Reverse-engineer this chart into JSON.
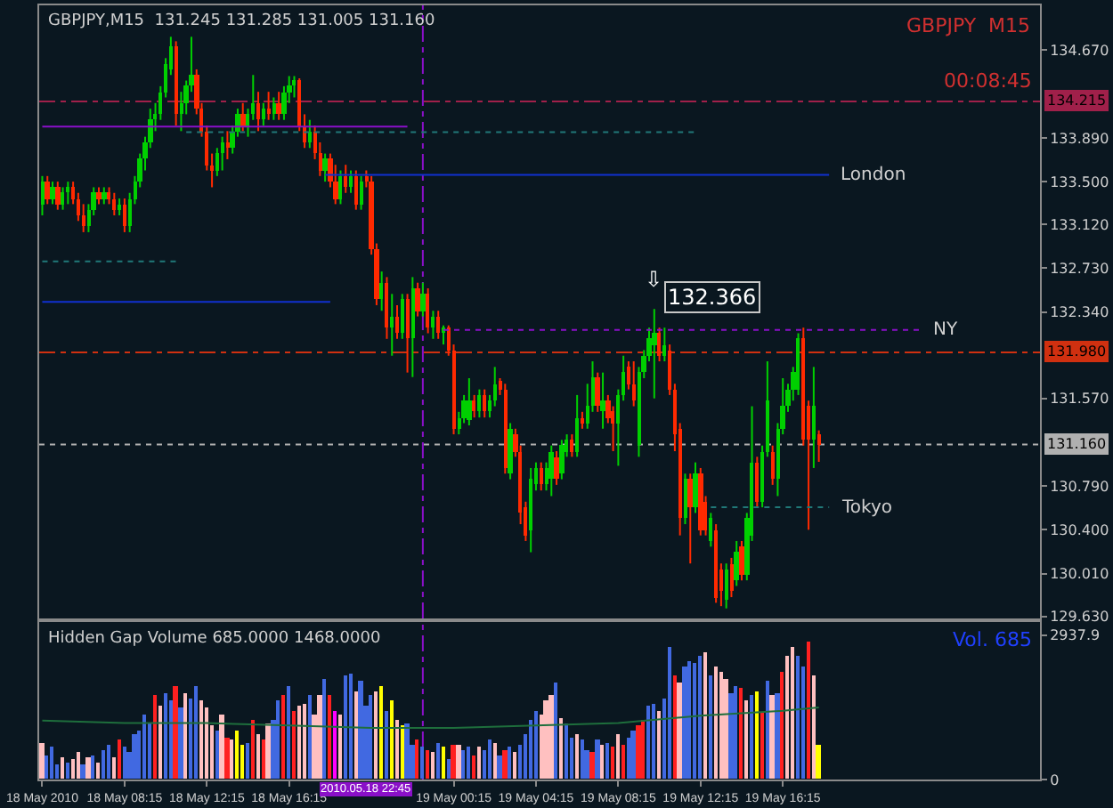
{
  "chart_data": [
    {
      "type": "candlestick",
      "annotations": [
        "GBPJPY,M15  131.245 131.285 131.005 131.160",
        "GBPJPY  M15",
        "00:08:45",
        {
          "text": "132.366",
          "x": "2010-05-19T10:00",
          "y": 132.366
        },
        {
          "text": "⇩",
          "x": "2010-05-19T10:00",
          "y": 132.366
        }
      ],
      "x": [
        "2010-05-18T04:15",
        "2010-05-18T04:30",
        "2010-05-18T04:45",
        "2010-05-18T05:00",
        "2010-05-18T05:15",
        "2010-05-18T05:30",
        "2010-05-18T05:45",
        "2010-05-18T06:00",
        "2010-05-18T06:15",
        "2010-05-18T06:30",
        "2010-05-18T06:45",
        "2010-05-18T07:00",
        "2010-05-18T07:15",
        "2010-05-18T07:30",
        "2010-05-18T07:45",
        "2010-05-18T08:00",
        "2010-05-18T08:15",
        "2010-05-18T08:30",
        "2010-05-18T08:45",
        "2010-05-18T09:00",
        "2010-05-18T09:15",
        "2010-05-18T09:30",
        "2010-05-18T09:45",
        "2010-05-18T10:00",
        "2010-05-18T10:15",
        "2010-05-18T10:30",
        "2010-05-18T10:45",
        "2010-05-18T11:00",
        "2010-05-18T11:15",
        "2010-05-18T11:30",
        "2010-05-18T11:45",
        "2010-05-18T12:00",
        "2010-05-18T12:15",
        "2010-05-18T12:30",
        "2010-05-18T12:45",
        "2010-05-18T13:00",
        "2010-05-18T13:15",
        "2010-05-18T13:30",
        "2010-05-18T13:45",
        "2010-05-18T14:00",
        "2010-05-18T14:15",
        "2010-05-18T14:30",
        "2010-05-18T14:45",
        "2010-05-18T15:00",
        "2010-05-18T15:15",
        "2010-05-18T15:30",
        "2010-05-18T15:45",
        "2010-05-18T16:00",
        "2010-05-18T16:15",
        "2010-05-18T16:30",
        "2010-05-18T16:45",
        "2010-05-18T17:00",
        "2010-05-18T17:15",
        "2010-05-18T17:30",
        "2010-05-18T17:45",
        "2010-05-18T18:00",
        "2010-05-18T18:15",
        "2010-05-18T18:30",
        "2010-05-18T18:45",
        "2010-05-18T19:00",
        "2010-05-18T19:15",
        "2010-05-18T19:30",
        "2010-05-18T19:45",
        "2010-05-18T20:00",
        "2010-05-18T20:15",
        "2010-05-18T20:30",
        "2010-05-18T20:45",
        "2010-05-18T21:00",
        "2010-05-18T21:15",
        "2010-05-18T21:30",
        "2010-05-18T21:45",
        "2010-05-18T22:00",
        "2010-05-18T22:15",
        "2010-05-18T22:30",
        "2010-05-18T22:45",
        "2010-05-18T23:00",
        "2010-05-18T23:15",
        "2010-05-18T23:30",
        "2010-05-18T23:45",
        "2010-05-19T00:00",
        "2010-05-19T00:15",
        "2010-05-19T00:30",
        "2010-05-19T00:45",
        "2010-05-19T01:00",
        "2010-05-19T01:15",
        "2010-05-19T01:30",
        "2010-05-19T01:45",
        "2010-05-19T02:00",
        "2010-05-19T02:15",
        "2010-05-19T02:30",
        "2010-05-19T02:45",
        "2010-05-19T03:00",
        "2010-05-19T03:15",
        "2010-05-19T03:30",
        "2010-05-19T03:45",
        "2010-05-19T04:00",
        "2010-05-19T04:15",
        "2010-05-19T04:30",
        "2010-05-19T04:45",
        "2010-05-19T05:00",
        "2010-05-19T05:15",
        "2010-05-19T05:30",
        "2010-05-19T05:45",
        "2010-05-19T06:00",
        "2010-05-19T06:15",
        "2010-05-19T06:30",
        "2010-05-19T06:45",
        "2010-05-19T07:00",
        "2010-05-19T07:15",
        "2010-05-19T07:30",
        "2010-05-19T07:45",
        "2010-05-19T08:00",
        "2010-05-19T08:15",
        "2010-05-19T08:30",
        "2010-05-19T08:45",
        "2010-05-19T09:00",
        "2010-05-19T09:15",
        "2010-05-19T09:30",
        "2010-05-19T09:45",
        "2010-05-19T10:00",
        "2010-05-19T10:15",
        "2010-05-19T10:30",
        "2010-05-19T10:45",
        "2010-05-19T11:00",
        "2010-05-19T11:15",
        "2010-05-19T11:30",
        "2010-05-19T11:45",
        "2010-05-19T12:00",
        "2010-05-19T12:15",
        "2010-05-19T12:30",
        "2010-05-19T12:45",
        "2010-05-19T13:00",
        "2010-05-19T13:15",
        "2010-05-19T13:30",
        "2010-05-19T13:45",
        "2010-05-19T14:00",
        "2010-05-19T14:15",
        "2010-05-19T14:30",
        "2010-05-19T14:45",
        "2010-05-19T15:00",
        "2010-05-19T15:15",
        "2010-05-19T15:30",
        "2010-05-19T15:45",
        "2010-05-19T16:00",
        "2010-05-19T16:15",
        "2010-05-19T16:30",
        "2010-05-19T16:45",
        "2010-05-19T17:00",
        "2010-05-19T17:15",
        "2010-05-19T17:30",
        "2010-05-19T17:45",
        "2010-05-19T18:00"
      ],
      "ohlc": [
        [
          133.3,
          133.55,
          133.2,
          133.5
        ],
        [
          133.5,
          133.55,
          133.3,
          133.35
        ],
        [
          133.35,
          133.5,
          133.3,
          133.45
        ],
        [
          133.45,
          133.5,
          133.25,
          133.3
        ],
        [
          133.3,
          133.45,
          133.25,
          133.4
        ],
        [
          133.4,
          133.5,
          133.3,
          133.45
        ],
        [
          133.45,
          133.5,
          133.3,
          133.35
        ],
        [
          133.35,
          133.4,
          133.15,
          133.2
        ],
        [
          133.2,
          133.3,
          133.05,
          133.1
        ],
        [
          133.1,
          133.3,
          133.05,
          133.25
        ],
        [
          133.25,
          133.45,
          133.2,
          133.4
        ],
        [
          133.4,
          133.45,
          133.3,
          133.35
        ],
        [
          133.35,
          133.45,
          133.3,
          133.4
        ],
        [
          133.4,
          133.45,
          133.3,
          133.35
        ],
        [
          133.35,
          133.4,
          133.2,
          133.25
        ],
        [
          133.25,
          133.35,
          133.2,
          133.3
        ],
        [
          133.3,
          133.35,
          133.05,
          133.1
        ],
        [
          133.1,
          133.4,
          133.05,
          133.35
        ],
        [
          133.35,
          133.55,
          133.3,
          133.5
        ],
        [
          133.5,
          133.75,
          133.45,
          133.7
        ],
        [
          133.7,
          133.9,
          133.6,
          133.85
        ],
        [
          133.85,
          134.15,
          133.8,
          134.05
        ],
        [
          134.05,
          134.2,
          133.95,
          134.1
        ],
        [
          134.1,
          134.35,
          134.05,
          134.3
        ],
        [
          134.3,
          134.6,
          134.25,
          134.55
        ],
        [
          134.5,
          134.79,
          134.45,
          134.7
        ],
        [
          134.7,
          134.75,
          134.0,
          134.1
        ],
        [
          134.1,
          134.3,
          133.95,
          134.2
        ],
        [
          134.2,
          134.4,
          134.1,
          134.35
        ],
        [
          134.35,
          134.79,
          134.3,
          134.45
        ],
        [
          134.45,
          134.5,
          134.1,
          134.15
        ],
        [
          134.15,
          134.2,
          133.9,
          133.95
        ],
        [
          133.95,
          134.0,
          133.6,
          133.65
        ],
        [
          133.65,
          133.75,
          133.45,
          133.6
        ],
        [
          133.6,
          133.8,
          133.55,
          133.75
        ],
        [
          133.75,
          133.9,
          133.6,
          133.85
        ],
        [
          133.85,
          133.95,
          133.7,
          133.8
        ],
        [
          133.8,
          134.0,
          133.75,
          133.95
        ],
        [
          133.95,
          134.15,
          133.9,
          134.1
        ],
        [
          134.1,
          134.2,
          133.95,
          134.0
        ],
        [
          134.0,
          134.15,
          133.9,
          134.1
        ],
        [
          134.1,
          134.45,
          134.05,
          134.2
        ],
        [
          134.2,
          134.3,
          133.95,
          134.05
        ],
        [
          134.05,
          134.2,
          134.0,
          134.15
        ],
        [
          134.15,
          134.3,
          134.05,
          134.1
        ],
        [
          134.1,
          134.25,
          134.05,
          134.2
        ],
        [
          134.2,
          134.3,
          134.05,
          134.1
        ],
        [
          134.1,
          134.35,
          134.05,
          134.3
        ],
        [
          134.3,
          134.44,
          134.2,
          134.35
        ],
        [
          134.35,
          134.44,
          134.25,
          134.4
        ],
        [
          134.4,
          134.42,
          133.95,
          134.0
        ],
        [
          134.0,
          134.1,
          133.8,
          133.85
        ],
        [
          133.85,
          134.05,
          133.8,
          133.95
        ],
        [
          133.95,
          134.0,
          133.7,
          133.75
        ],
        [
          133.75,
          133.85,
          133.55,
          133.6
        ],
        [
          133.6,
          133.75,
          133.5,
          133.7
        ],
        [
          133.7,
          133.75,
          133.45,
          133.5
        ],
        [
          133.5,
          133.65,
          133.3,
          133.35
        ],
        [
          133.35,
          133.6,
          133.3,
          133.55
        ],
        [
          133.55,
          133.65,
          133.4,
          133.45
        ],
        [
          133.45,
          133.6,
          133.4,
          133.55
        ],
        [
          133.55,
          133.6,
          133.25,
          133.3
        ],
        [
          133.3,
          133.55,
          133.25,
          133.5
        ],
        [
          133.55,
          133.6,
          133.45,
          133.5
        ],
        [
          133.5,
          133.55,
          132.85,
          132.9
        ],
        [
          132.9,
          132.95,
          132.4,
          132.45
        ],
        [
          132.45,
          132.7,
          132.35,
          132.6
        ],
        [
          132.6,
          132.65,
          132.1,
          132.2
        ],
        [
          132.2,
          132.5,
          131.95,
          132.3
        ],
        [
          132.3,
          132.4,
          132.1,
          132.15
        ],
        [
          132.15,
          132.5,
          132.1,
          132.45
        ],
        [
          132.45,
          132.5,
          131.8,
          132.1
        ],
        [
          132.1,
          132.65,
          131.76,
          132.55
        ],
        [
          132.55,
          132.6,
          132.3,
          132.35
        ],
        [
          132.35,
          132.6,
          132.3,
          132.5
        ],
        [
          132.5,
          132.55,
          132.15,
          132.2
        ],
        [
          132.2,
          132.35,
          132.1,
          132.3
        ],
        [
          132.3,
          132.35,
          132.1,
          132.15
        ],
        [
          132.15,
          132.22,
          132.05,
          132.2
        ],
        [
          132.2,
          132.22,
          131.95,
          132.0
        ],
        [
          132.0,
          132.05,
          131.25,
          131.3
        ],
        [
          131.3,
          131.45,
          131.25,
          131.4
        ],
        [
          131.4,
          131.6,
          131.35,
          131.55
        ],
        [
          131.38,
          131.75,
          131.33,
          131.55
        ],
        [
          131.55,
          131.6,
          131.4,
          131.45
        ],
        [
          131.45,
          131.65,
          131.4,
          131.6
        ],
        [
          131.6,
          131.65,
          131.4,
          131.45
        ],
        [
          131.45,
          131.6,
          131.4,
          131.55
        ],
        [
          131.55,
          131.85,
          131.5,
          131.7
        ],
        [
          131.72,
          131.75,
          131.6,
          131.65
        ],
        [
          131.65,
          131.7,
          130.9,
          130.95
        ],
        [
          130.9,
          131.35,
          130.85,
          131.3
        ],
        [
          131.25,
          131.3,
          131.05,
          131.1
        ],
        [
          131.1,
          131.15,
          130.45,
          130.55
        ],
        [
          130.6,
          130.65,
          130.3,
          130.35
        ],
        [
          130.4,
          130.95,
          130.2,
          130.85
        ],
        [
          130.8,
          131.0,
          130.75,
          130.95
        ],
        [
          130.95,
          131.0,
          130.75,
          130.8
        ],
        [
          130.8,
          131.0,
          130.75,
          130.95
        ],
        [
          130.85,
          131.15,
          130.7,
          131.1
        ],
        [
          131.05,
          131.1,
          130.8,
          130.85
        ],
        [
          130.9,
          131.2,
          130.85,
          131.15
        ],
        [
          131.1,
          131.25,
          131.05,
          131.2
        ],
        [
          131.2,
          131.25,
          131.05,
          131.1
        ],
        [
          131.1,
          131.6,
          131.05,
          131.4
        ],
        [
          131.4,
          131.45,
          131.3,
          131.35
        ],
        [
          131.35,
          131.7,
          131.3,
          131.5
        ],
        [
          131.5,
          131.9,
          131.45,
          131.75
        ],
        [
          131.75,
          131.8,
          131.45,
          131.5
        ],
        [
          131.45,
          131.8,
          131.3,
          131.55
        ],
        [
          131.55,
          131.6,
          131.35,
          131.4
        ],
        [
          131.45,
          131.5,
          131.1,
          131.35
        ],
        [
          131.35,
          131.65,
          130.97,
          131.6
        ],
        [
          131.6,
          131.95,
          131.55,
          131.8
        ],
        [
          131.85,
          131.9,
          131.65,
          131.7
        ],
        [
          131.7,
          131.9,
          131.5,
          131.55
        ],
        [
          131.15,
          131.85,
          131.05,
          131.8
        ],
        [
          131.8,
          132.0,
          131.75,
          131.95
        ],
        [
          131.95,
          132.2,
          131.9,
          132.1
        ],
        [
          132.05,
          132.366,
          131.57,
          132.15
        ],
        [
          132.15,
          132.2,
          131.9,
          131.95
        ],
        [
          131.95,
          132.2,
          131.9,
          132.05
        ],
        [
          132.0,
          132.05,
          131.6,
          131.65
        ],
        [
          131.65,
          131.7,
          131.1,
          131.25
        ],
        [
          131.3,
          131.35,
          130.35,
          130.5
        ],
        [
          130.5,
          130.9,
          130.45,
          130.85
        ],
        [
          130.85,
          130.9,
          130.1,
          130.6
        ],
        [
          130.6,
          131.0,
          130.55,
          130.9
        ],
        [
          130.9,
          130.95,
          130.35,
          130.4
        ],
        [
          130.65,
          130.7,
          130.35,
          130.4
        ],
        [
          130.3,
          130.55,
          130.25,
          130.5
        ],
        [
          130.4,
          130.45,
          129.75,
          129.8
        ],
        [
          130.05,
          130.1,
          129.72,
          129.85
        ],
        [
          129.78,
          130.1,
          129.7,
          130.05
        ],
        [
          130.1,
          130.15,
          129.8,
          129.85
        ],
        [
          129.95,
          130.3,
          129.9,
          130.2
        ],
        [
          130.25,
          130.3,
          129.95,
          130.0
        ],
        [
          130.0,
          130.55,
          129.95,
          130.5
        ],
        [
          130.35,
          131.5,
          130.3,
          131.0
        ],
        [
          131.0,
          131.05,
          130.6,
          130.65
        ],
        [
          130.65,
          131.15,
          130.6,
          131.1
        ],
        [
          131.1,
          131.9,
          131.05,
          131.55
        ],
        [
          131.1,
          131.15,
          130.8,
          130.85
        ],
        [
          130.85,
          131.35,
          130.7,
          131.3
        ],
        [
          131.3,
          131.75,
          131.25,
          131.5
        ],
        [
          131.5,
          131.7,
          131.45,
          131.65
        ],
        [
          131.65,
          131.85,
          131.55,
          131.8
        ],
        [
          131.65,
          132.15,
          131.6,
          132.1
        ],
        [
          132.1,
          132.2,
          131.15,
          131.2
        ],
        [
          131.5,
          131.55,
          130.4,
          131.2
        ],
        [
          131.2,
          131.85,
          130.95,
          131.5
        ],
        [
          131.245,
          131.285,
          131.005,
          131.16
        ]
      ],
      "series": [
        {
          "type": "line",
          "color": "#8a10c8",
          "line_style": "solid",
          "x": [
            "2010-05-18T04:15",
            "2010-05-18T22:00"
          ],
          "values": [
            133.99,
            133.99
          ]
        },
        {
          "type": "line",
          "color": "#207878",
          "line_style": "dotted",
          "x": [
            "2010-05-18T11:15",
            "2010-05-19T12:00"
          ],
          "values": [
            133.94,
            133.94
          ]
        },
        {
          "type": "line",
          "name": "London",
          "color": "#1030d0",
          "line_style": "solid",
          "x": [
            "2010-05-18T18:00",
            "2010-05-19T18:30"
          ],
          "values": [
            133.56,
            133.56
          ]
        },
        {
          "type": "line",
          "color": "#207878",
          "line_style": "dotted",
          "x": [
            "2010-05-18T04:15",
            "2010-05-18T11:00"
          ],
          "values": [
            132.79,
            132.79
          ]
        },
        {
          "type": "line",
          "color": "#1030d0",
          "line_style": "solid",
          "x": [
            "2010-05-18T04:15",
            "2010-05-18T18:15"
          ],
          "values": [
            132.43,
            132.43
          ]
        },
        {
          "type": "line",
          "name": "NY",
          "color": "#8a10c8",
          "line_style": "dotted",
          "x": [
            "2010-05-18T23:45",
            "2010-05-19T23:00"
          ],
          "values": [
            132.18,
            132.18
          ]
        },
        {
          "type": "line",
          "name": "Tokyo",
          "color": "#207878",
          "line_style": "dotted",
          "x": [
            "2010-05-19T12:45",
            "2010-05-19T18:30"
          ],
          "values": [
            130.6,
            130.6
          ]
        }
      ],
      "ref_lines": [
        {
          "axis": "y",
          "value": 134.215,
          "label": "134.215",
          "color": "#a0204a",
          "line_style": "dashed"
        },
        {
          "axis": "y",
          "value": 131.98,
          "label": "131.980",
          "color": "#d03010",
          "line_style": "dashed"
        },
        {
          "axis": "y",
          "value": 131.16,
          "label": "131.160",
          "color": "#b0b0b0",
          "line_style": "dotted"
        },
        {
          "axis": "x",
          "value": "2010-05-18T22:45",
          "color": "#8a10c8",
          "line_style": "dashed"
        }
      ],
      "xlim": [
        "2010-05-18T04:06",
        "2010-05-20T04:45"
      ],
      "ylim": [
        129.61,
        135.07
      ],
      "yticks": [
        {
          "value": 134.67,
          "label": "134.670"
        },
        {
          "value": 133.89,
          "label": "133.890"
        },
        {
          "value": 133.5,
          "label": "133.500"
        },
        {
          "value": 133.12,
          "label": "133.120"
        },
        {
          "value": 132.73,
          "label": "132.730"
        },
        {
          "value": 132.34,
          "label": "132.340"
        },
        {
          "value": 131.57,
          "label": "131.570"
        },
        {
          "value": 130.79,
          "label": "130.790"
        },
        {
          "value": 130.4,
          "label": "130.400"
        },
        {
          "value": 130.01,
          "label": "130.010"
        },
        {
          "value": 129.63,
          "label": "129.630"
        }
      ],
      "tick_labels": "y"
    },
    {
      "type": "bar",
      "title": "Hidden Gap Volume 685.0000 1468.0000",
      "annotations": [
        "Vol. 685"
      ],
      "series": [
        {
          "type": "bar",
          "x": [
            "2010-05-18T04:15",
            "2010-05-18T04:30",
            "2010-05-18T04:45",
            "2010-05-18T05:00",
            "2010-05-18T05:15",
            "2010-05-18T05:30",
            "2010-05-18T05:45",
            "2010-05-18T06:00",
            "2010-05-18T06:15",
            "2010-05-18T06:30",
            "2010-05-18T06:45",
            "2010-05-18T07:00",
            "2010-05-18T07:15",
            "2010-05-18T07:30",
            "2010-05-18T07:45",
            "2010-05-18T08:00",
            "2010-05-18T08:15",
            "2010-05-18T08:30",
            "2010-05-18T08:45",
            "2010-05-18T09:00",
            "2010-05-18T09:15",
            "2010-05-18T09:30",
            "2010-05-18T09:45",
            "2010-05-18T10:00",
            "2010-05-18T10:15",
            "2010-05-18T10:30",
            "2010-05-18T10:45",
            "2010-05-18T11:00",
            "2010-05-18T11:15",
            "2010-05-18T11:30",
            "2010-05-18T11:45",
            "2010-05-18T12:00",
            "2010-05-18T12:15",
            "2010-05-18T12:30",
            "2010-05-18T12:45",
            "2010-05-18T13:00",
            "2010-05-18T13:15",
            "2010-05-18T13:30",
            "2010-05-18T13:45",
            "2010-05-18T14:00",
            "2010-05-18T14:15",
            "2010-05-18T14:30",
            "2010-05-18T14:45",
            "2010-05-18T15:00",
            "2010-05-18T15:15",
            "2010-05-18T15:30",
            "2010-05-18T15:45",
            "2010-05-18T16:00",
            "2010-05-18T16:15",
            "2010-05-18T16:30",
            "2010-05-18T16:45",
            "2010-05-18T17:00",
            "2010-05-18T17:15",
            "2010-05-18T17:30",
            "2010-05-18T17:45",
            "2010-05-18T18:00",
            "2010-05-18T18:15",
            "2010-05-18T18:30",
            "2010-05-18T18:45",
            "2010-05-18T19:00",
            "2010-05-18T19:15",
            "2010-05-18T19:30",
            "2010-05-18T19:45",
            "2010-05-18T20:00",
            "2010-05-18T20:15",
            "2010-05-18T20:30",
            "2010-05-18T20:45",
            "2010-05-18T21:00",
            "2010-05-18T21:15",
            "2010-05-18T21:30",
            "2010-05-18T21:45",
            "2010-05-18T22:00",
            "2010-05-18T22:15",
            "2010-05-18T22:30",
            "2010-05-18T22:45",
            "2010-05-18T23:00",
            "2010-05-18T23:15",
            "2010-05-18T23:30",
            "2010-05-18T23:45",
            "2010-05-19T00:00",
            "2010-05-19T00:15",
            "2010-05-19T00:30",
            "2010-05-19T00:45",
            "2010-05-19T01:00",
            "2010-05-19T01:15",
            "2010-05-19T01:30",
            "2010-05-19T01:45",
            "2010-05-19T02:00",
            "2010-05-19T02:15",
            "2010-05-19T02:30",
            "2010-05-19T02:45",
            "2010-05-19T03:00",
            "2010-05-19T03:15",
            "2010-05-19T03:30",
            "2010-05-19T03:45",
            "2010-05-19T04:00",
            "2010-05-19T04:15",
            "2010-05-19T04:30",
            "2010-05-19T04:45",
            "2010-05-19T05:00",
            "2010-05-19T05:15",
            "2010-05-19T05:30",
            "2010-05-19T05:45",
            "2010-05-19T06:00",
            "2010-05-19T06:15",
            "2010-05-19T06:30",
            "2010-05-19T06:45",
            "2010-05-19T07:00",
            "2010-05-19T07:15",
            "2010-05-19T07:30",
            "2010-05-19T07:45",
            "2010-05-19T08:00",
            "2010-05-19T08:15",
            "2010-05-19T08:30",
            "2010-05-19T08:45",
            "2010-05-19T09:00",
            "2010-05-19T09:15",
            "2010-05-19T09:30",
            "2010-05-19T09:45",
            "2010-05-19T10:00",
            "2010-05-19T10:15",
            "2010-05-19T10:30",
            "2010-05-19T10:45",
            "2010-05-19T11:00",
            "2010-05-19T11:15",
            "2010-05-19T11:30",
            "2010-05-19T11:45",
            "2010-05-19T12:00",
            "2010-05-19T12:15",
            "2010-05-19T12:30",
            "2010-05-19T12:45",
            "2010-05-19T13:00",
            "2010-05-19T13:15",
            "2010-05-19T13:30",
            "2010-05-19T13:45",
            "2010-05-19T14:00",
            "2010-05-19T14:15",
            "2010-05-19T14:30",
            "2010-05-19T14:45",
            "2010-05-19T15:00",
            "2010-05-19T15:15",
            "2010-05-19T15:30",
            "2010-05-19T15:45",
            "2010-05-19T16:00",
            "2010-05-19T16:15",
            "2010-05-19T16:30",
            "2010-05-19T16:45",
            "2010-05-19T17:00",
            "2010-05-19T17:15",
            "2010-05-19T17:30",
            "2010-05-19T17:45",
            "2010-05-19T18:00"
          ],
          "values": [
            750,
            500,
            650,
            300,
            450,
            350,
            400,
            550,
            300,
            450,
            500,
            350,
            600,
            700,
            450,
            800,
            650,
            550,
            900,
            1000,
            1300,
            1150,
            1700,
            1500,
            1750,
            1600,
            1900,
            1450,
            1750,
            1650,
            1900,
            1600,
            1450,
            1100,
            1000,
            1300,
            850,
            800,
            1000,
            700,
            750,
            1200,
            900,
            800,
            1150,
            1200,
            1600,
            1700,
            1900,
            1400,
            1500,
            1550,
            1700,
            1300,
            1700,
            2050,
            1700,
            1400,
            1300,
            2100,
            2150,
            1800,
            2000,
            1500,
            1700,
            1800,
            1900,
            1400,
            1600,
            1200,
            1100,
            1150,
            700,
            800,
            650,
            600,
            550,
            750,
            650,
            400,
            700,
            700,
            600,
            650,
            500,
            650,
            600,
            800,
            750,
            500,
            600,
            650,
            550,
            700,
            900,
            1200,
            1400,
            1300,
            1600,
            1700,
            1950,
            1250,
            1150,
            850,
            900,
            800,
            600,
            550,
            800,
            700,
            750,
            650,
            900,
            700,
            850,
            1000,
            1100,
            1200,
            1500,
            1550,
            1400,
            1650,
            2700,
            2100,
            1950,
            2300,
            2400,
            2350,
            2500,
            2600,
            2100,
            2300,
            2200,
            2050,
            1750,
            1900,
            1850,
            1600,
            1700,
            1800,
            1350,
            2000,
            1700,
            1750,
            2200,
            2500,
            2700,
            2500,
            2300,
            2800,
            2100,
            685
          ],
          "colors": [
            "#ffc0c0",
            "#4169e1",
            "#4169e1",
            "#4169e1",
            "#ffc0c0",
            "#4169e1",
            "#ffc0c0",
            "#ffc0c0",
            "#4169e1",
            "#ffc0c0",
            "#4169e1",
            "#ffc0c0",
            "#4169e1",
            "#4169e1",
            "#ffc0c0",
            "#ff2020",
            "#4169e1",
            "#4169e1",
            "#4169e1",
            "#4169e1",
            "#4169e1",
            "#4169e1",
            "#ff2020",
            "#ffc0c0",
            "#4169e1",
            "#4169e1",
            "#ff2020",
            "#4169e1",
            "#ffc0c0",
            "#4169e1",
            "#4169e1",
            "#ffc0c0",
            "#ffc0c0",
            "#ffc0c0",
            "#4169e1",
            "#ffc0c0",
            "#ff2020",
            "#ffc0c0",
            "#ffff00",
            "#ffff00",
            "#4169e1",
            "#ff2020",
            "#ffc0c0",
            "#ff2020",
            "#ffc0c0",
            "#4169e1",
            "#4169e1",
            "#ff2020",
            "#4169e1",
            "#ff2020",
            "#ffc0c0",
            "#ffc0c0",
            "#4169e1",
            "#ffc0c0",
            "#ffc0c0",
            "#4169e1",
            "#ff2020",
            "#ff00ff",
            "#ffc0c0",
            "#4169e1",
            "#4169e1",
            "#ffc0c0",
            "#4169e1",
            "#4169e1",
            "#4169e1",
            "#ffc0c0",
            "#ffff00",
            "#4169e1",
            "#ffff00",
            "#ffc0c0",
            "#ffff00",
            "#4169e1",
            "#4169e1",
            "#ff2020",
            "#4169e1",
            "#ff2020",
            "#ffc0c0",
            "#4169e1",
            "#ffff00",
            "#4169e1",
            "#ff2020",
            "#ffc0c0",
            "#4169e1",
            "#4169e1",
            "#ff2020",
            "#ffc0c0",
            "#4169e1",
            "#4169e1",
            "#ffc0c0",
            "#4169e1",
            "#ff2020",
            "#4169e1",
            "#ffc0c0",
            "#4169e1",
            "#4169e1",
            "#4169e1",
            "#4169e1",
            "#ffc0c0",
            "#ffc0c0",
            "#ffc0c0",
            "#4169e1",
            "#ffc0c0",
            "#4169e1",
            "#4169e1",
            "#ffc0c0",
            "#4169e1",
            "#4169e1",
            "#ff2020",
            "#4169e1",
            "#ffc0c0",
            "#4169e1",
            "#ff2020",
            "#ffc0c0",
            "#ff2020",
            "#4169e1",
            "#4169e1",
            "#ff2020",
            "#ff2020",
            "#4169e1",
            "#4169e1",
            "#ffc0c0",
            "#4169e1",
            "#4169e1",
            "#ff2020",
            "#ffc0c0",
            "#4169e1",
            "#4169e1",
            "#4169e1",
            "#4169e1",
            "#ffc0c0",
            "#4169e1",
            "#ffc0c0",
            "#ffc0c0",
            "#ffc0c0",
            "#4169e1",
            "#4169e1",
            "#ff2020",
            "#ffc0c0",
            "#4169e1",
            "#ffff00",
            "#ff2020",
            "#4169e1",
            "#ffc0c0",
            "#4169e1",
            "#ff2020",
            "#ffc0c0",
            "#ffc0c0",
            "#4169e1",
            "#4169e1",
            "#ff2020",
            "#ffc0c0",
            "#ffff00"
          ]
        },
        {
          "type": "line",
          "color": "#1e6e3c",
          "line_style": "solid",
          "x": [
            "2010-05-18T04:15",
            "2010-05-18T08:15",
            "2010-05-18T12:15",
            "2010-05-18T16:15",
            "2010-05-18T20:15",
            "2010-05-19T00:15",
            "2010-05-19T04:15",
            "2010-05-19T08:15",
            "2010-05-19T12:15",
            "2010-05-19T16:15",
            "2010-05-19T18:00"
          ],
          "values": [
            1200,
            1150,
            1150,
            1100,
            1050,
            1050,
            1100,
            1150,
            1300,
            1400,
            1468
          ]
        }
      ],
      "ref_lines": [
        {
          "axis": "x",
          "value": "2010-05-18T22:45",
          "label": "2010.05.18 22:45",
          "color": "#8a10c8",
          "line_style": "dashed"
        }
      ],
      "xlim": [
        "2010-05-18T04:06",
        "2010-05-20T04:45"
      ],
      "xticks": [
        {
          "value": "2010-05-18T04:15",
          "label": "18 May 2010"
        },
        {
          "value": "2010-05-18T08:15",
          "label": "18 May 08:15"
        },
        {
          "value": "2010-05-18T12:15",
          "label": "18 May 12:15"
        },
        {
          "value": "2010-05-18T16:15",
          "label": "18 May 16:15"
        },
        {
          "value": "2010-05-19T00:15",
          "label": "19 May 00:15"
        },
        {
          "value": "2010-05-19T04:15",
          "label": "19 May 04:15"
        },
        {
          "value": "2010-05-19T08:15",
          "label": "19 May 08:15"
        },
        {
          "value": "2010-05-19T12:15",
          "label": "19 May 12:15"
        },
        {
          "value": "2010-05-19T16:15",
          "label": "19 May 16:15"
        }
      ],
      "ylim": [
        0,
        3200
      ],
      "yticks": [
        2937.9,
        0
      ]
    }
  ]
}
